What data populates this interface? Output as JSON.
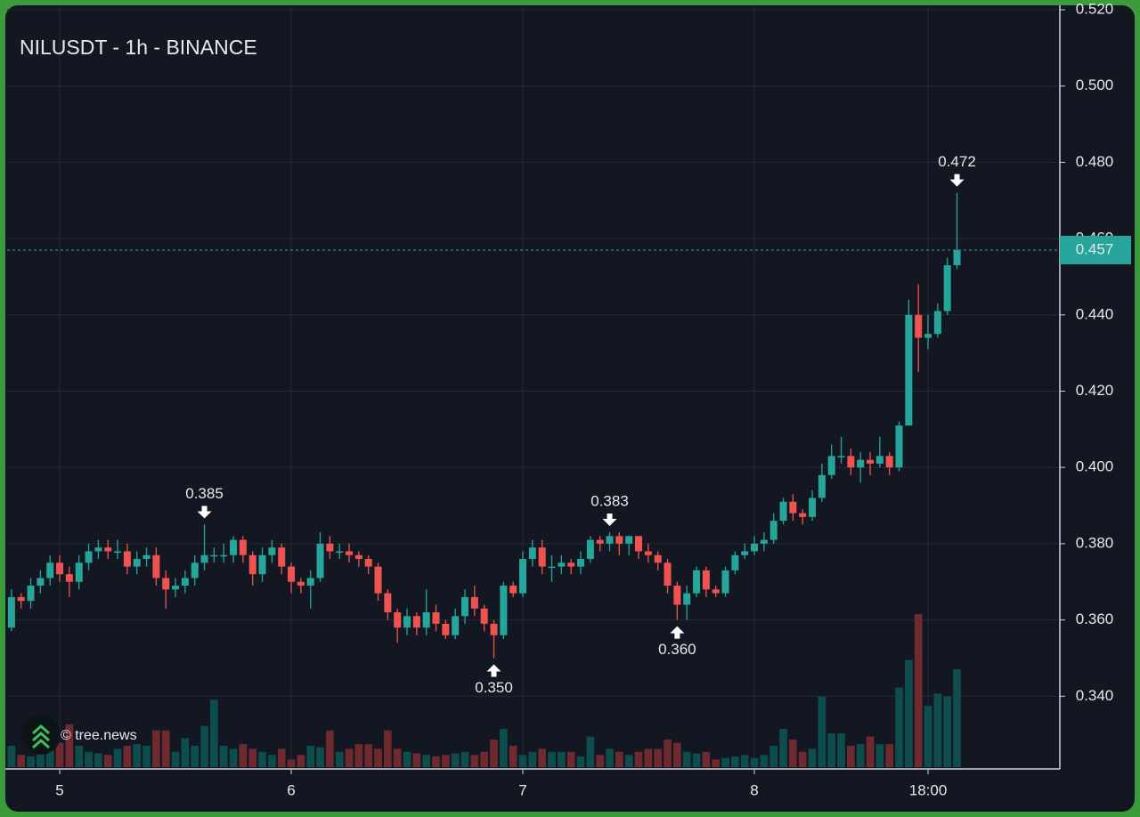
{
  "chart_data": {
    "type": "candlestick",
    "title": "NILUSDT - 1h - BINANCE",
    "watermark": "© tree.news",
    "up_color": "#26a69a",
    "down_color": "#ef5350",
    "up_volume_color": "#0e4d4d",
    "down_volume_color": "#6e2a2f",
    "grid": true,
    "xlim": [
      -5.45,
      103.66
    ],
    "ylim": [
      0.3214,
      0.5207
    ],
    "xticks": [
      {
        "value": 0,
        "label": "5"
      },
      {
        "value": 24,
        "label": "6"
      },
      {
        "value": 48,
        "label": "7"
      },
      {
        "value": 72,
        "label": "8"
      },
      {
        "value": 90,
        "label": "18:00"
      }
    ],
    "yticks": [
      {
        "value": 0.34,
        "label": "0.340"
      },
      {
        "value": 0.36,
        "label": "0.360"
      },
      {
        "value": 0.38,
        "label": "0.380"
      },
      {
        "value": 0.4,
        "label": "0.400"
      },
      {
        "value": 0.42,
        "label": "0.420"
      },
      {
        "value": 0.44,
        "label": "0.440"
      },
      {
        "value": 0.46,
        "label": "0.460"
      },
      {
        "value": 0.48,
        "label": "0.480"
      },
      {
        "value": 0.5,
        "label": "0.500"
      },
      {
        "value": 0.52,
        "label": "0.520"
      }
    ],
    "x": [
      -5,
      -4,
      -3,
      -2,
      -1,
      0,
      1,
      2,
      3,
      4,
      5,
      6,
      7,
      8,
      9,
      10,
      11,
      12,
      13,
      14,
      15,
      16,
      17,
      18,
      19,
      20,
      21,
      22,
      23,
      24,
      25,
      26,
      27,
      28,
      29,
      30,
      31,
      32,
      33,
      34,
      35,
      36,
      37,
      38,
      39,
      40,
      41,
      42,
      43,
      44,
      45,
      46,
      47,
      48,
      49,
      50,
      51,
      52,
      53,
      54,
      55,
      56,
      57,
      58,
      59,
      60,
      61,
      62,
      63,
      64,
      65,
      66,
      67,
      68,
      69,
      70,
      71,
      72,
      73,
      74,
      75,
      76,
      77,
      78,
      79,
      80,
      81,
      82,
      83,
      84,
      85,
      86,
      87,
      88,
      89,
      90,
      91,
      92,
      93
    ],
    "open": [
      0.358,
      0.366,
      0.365,
      0.369,
      0.371,
      0.375,
      0.372,
      0.37,
      0.375,
      0.378,
      0.379,
      0.378,
      0.378,
      0.374,
      0.376,
      0.377,
      0.371,
      0.368,
      0.369,
      0.371,
      0.375,
      0.377,
      0.377,
      0.377,
      0.381,
      0.377,
      0.372,
      0.377,
      0.379,
      0.374,
      0.37,
      0.369,
      0.371,
      0.38,
      0.378,
      0.378,
      0.377,
      0.376,
      0.374,
      0.367,
      0.362,
      0.358,
      0.361,
      0.358,
      0.362,
      0.359,
      0.356,
      0.361,
      0.366,
      0.363,
      0.359,
      0.356,
      0.369,
      0.367,
      0.376,
      0.379,
      0.374,
      0.374,
      0.375,
      0.374,
      0.376,
      0.381,
      0.38,
      0.382,
      0.38,
      0.382,
      0.378,
      0.377,
      0.375,
      0.369,
      0.364,
      0.367,
      0.373,
      0.368,
      0.367,
      0.373,
      0.377,
      0.378,
      0.38,
      0.381,
      0.386,
      0.391,
      0.388,
      0.387,
      0.392,
      0.398,
      0.403,
      0.403,
      0.4,
      0.402,
      0.401,
      0.403,
      0.4,
      0.411,
      0.44,
      0.434,
      0.435,
      0.441,
      0.453
    ],
    "high": [
      0.368,
      0.367,
      0.371,
      0.373,
      0.377,
      0.377,
      0.374,
      0.377,
      0.38,
      0.381,
      0.381,
      0.381,
      0.38,
      0.378,
      0.379,
      0.379,
      0.373,
      0.371,
      0.373,
      0.377,
      0.385,
      0.379,
      0.38,
      0.382,
      0.382,
      0.378,
      0.379,
      0.381,
      0.38,
      0.375,
      0.371,
      0.373,
      0.383,
      0.382,
      0.38,
      0.38,
      0.378,
      0.377,
      0.375,
      0.368,
      0.363,
      0.363,
      0.362,
      0.368,
      0.364,
      0.36,
      0.363,
      0.368,
      0.369,
      0.364,
      0.36,
      0.37,
      0.37,
      0.378,
      0.381,
      0.381,
      0.377,
      0.377,
      0.376,
      0.378,
      0.382,
      0.382,
      0.383,
      0.383,
      0.382,
      0.382,
      0.38,
      0.378,
      0.376,
      0.37,
      0.369,
      0.374,
      0.374,
      0.369,
      0.374,
      0.378,
      0.38,
      0.382,
      0.383,
      0.388,
      0.392,
      0.393,
      0.389,
      0.394,
      0.401,
      0.406,
      0.408,
      0.405,
      0.404,
      0.404,
      0.408,
      0.404,
      0.412,
      0.444,
      0.448,
      0.44,
      0.443,
      0.455,
      0.472
    ],
    "low": [
      0.357,
      0.363,
      0.363,
      0.367,
      0.369,
      0.37,
      0.366,
      0.368,
      0.373,
      0.376,
      0.376,
      0.376,
      0.372,
      0.372,
      0.374,
      0.369,
      0.363,
      0.366,
      0.367,
      0.369,
      0.373,
      0.375,
      0.375,
      0.375,
      0.375,
      0.369,
      0.37,
      0.375,
      0.372,
      0.367,
      0.367,
      0.363,
      0.37,
      0.376,
      0.376,
      0.375,
      0.374,
      0.372,
      0.365,
      0.36,
      0.354,
      0.356,
      0.356,
      0.356,
      0.357,
      0.355,
      0.355,
      0.359,
      0.361,
      0.357,
      0.35,
      0.355,
      0.366,
      0.366,
      0.374,
      0.372,
      0.37,
      0.372,
      0.372,
      0.372,
      0.375,
      0.378,
      0.378,
      0.377,
      0.377,
      0.376,
      0.375,
      0.373,
      0.367,
      0.36,
      0.36,
      0.366,
      0.366,
      0.366,
      0.366,
      0.372,
      0.376,
      0.377,
      0.378,
      0.38,
      0.385,
      0.386,
      0.385,
      0.386,
      0.391,
      0.397,
      0.401,
      0.398,
      0.396,
      0.398,
      0.4,
      0.398,
      0.399,
      0.411,
      0.425,
      0.431,
      0.434,
      0.44,
      0.452
    ],
    "close": [
      0.366,
      0.365,
      0.369,
      0.371,
      0.375,
      0.372,
      0.37,
      0.375,
      0.378,
      0.379,
      0.378,
      0.378,
      0.374,
      0.376,
      0.377,
      0.371,
      0.368,
      0.369,
      0.371,
      0.375,
      0.377,
      0.377,
      0.377,
      0.381,
      0.377,
      0.372,
      0.377,
      0.379,
      0.374,
      0.37,
      0.369,
      0.371,
      0.38,
      0.378,
      0.378,
      0.377,
      0.376,
      0.374,
      0.367,
      0.362,
      0.358,
      0.361,
      0.358,
      0.362,
      0.359,
      0.356,
      0.361,
      0.366,
      0.363,
      0.359,
      0.356,
      0.369,
      0.367,
      0.376,
      0.379,
      0.374,
      0.374,
      0.375,
      0.374,
      0.376,
      0.381,
      0.38,
      0.382,
      0.38,
      0.382,
      0.378,
      0.377,
      0.375,
      0.369,
      0.364,
      0.367,
      0.373,
      0.368,
      0.367,
      0.373,
      0.377,
      0.378,
      0.38,
      0.381,
      0.386,
      0.391,
      0.388,
      0.387,
      0.392,
      0.398,
      0.403,
      0.403,
      0.4,
      0.402,
      0.401,
      0.403,
      0.4,
      0.411,
      0.44,
      0.434,
      0.435,
      0.441,
      0.453,
      0.457
    ],
    "volume": [
      14,
      8,
      7,
      10,
      14,
      16,
      28,
      14,
      10,
      9,
      8,
      12,
      14,
      15,
      14,
      24,
      24,
      10,
      19,
      14,
      27,
      44,
      14,
      12,
      15,
      12,
      10,
      8,
      12,
      5,
      8,
      14,
      13,
      24,
      10,
      12,
      15,
      15,
      12,
      24,
      12,
      10,
      9,
      8,
      7,
      8,
      9,
      10,
      8,
      10,
      18,
      25,
      14,
      8,
      10,
      12,
      10,
      10,
      10,
      7,
      20,
      8,
      12,
      10,
      8,
      10,
      12,
      12,
      18,
      16,
      10,
      9,
      10,
      5,
      6,
      7,
      8,
      6,
      8,
      14,
      25,
      18,
      10,
      12,
      46,
      22,
      22,
      14,
      15,
      20,
      15,
      15,
      52,
      70,
      100,
      40,
      48,
      46,
      64
    ],
    "annotations": [
      {
        "x": 15,
        "value": 0.385,
        "label": "0.385",
        "direction": "down"
      },
      {
        "x": 45,
        "value": 0.35,
        "label": "0.350",
        "direction": "up"
      },
      {
        "x": 57,
        "value": 0.383,
        "label": "0.383",
        "direction": "down"
      },
      {
        "x": 64,
        "value": 0.36,
        "label": "0.360",
        "direction": "up"
      },
      {
        "x": 93,
        "value": 0.472,
        "label": "0.472",
        "direction": "down"
      }
    ],
    "last_price": {
      "value": 0.457,
      "label": "0.457"
    }
  }
}
